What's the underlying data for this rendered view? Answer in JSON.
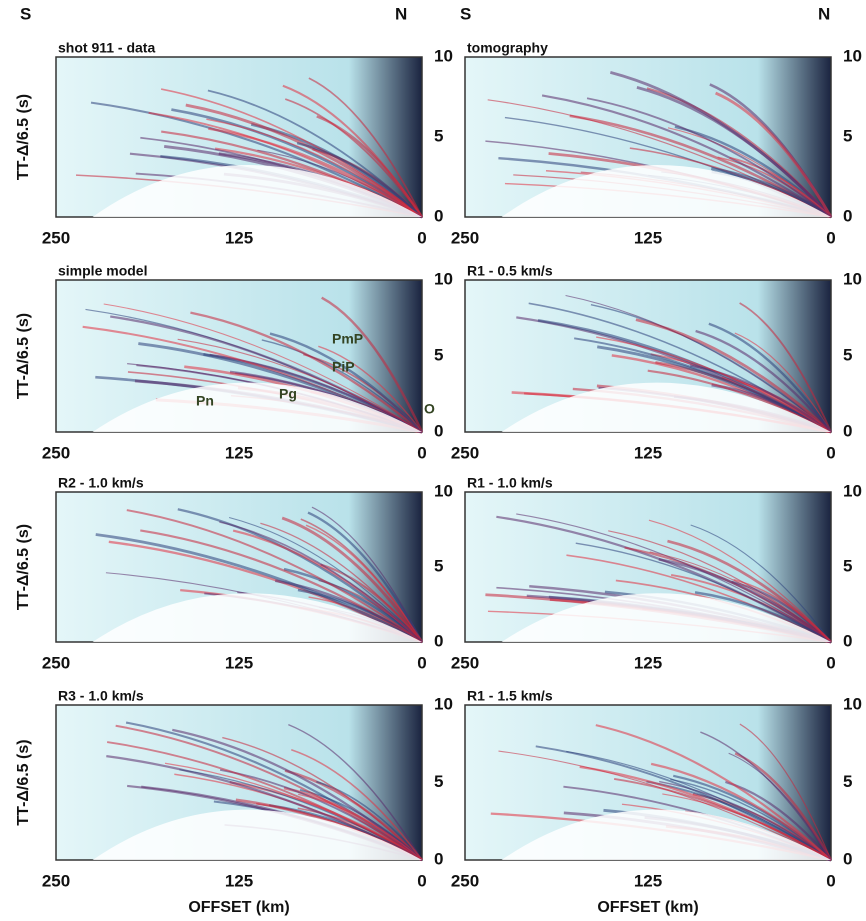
{
  "header": {
    "left": [
      "S",
      "N"
    ],
    "right": [
      "S",
      "N"
    ]
  },
  "y_label": "TT-Δ/6.5 (s)",
  "x_label": "OFFSET (km)",
  "panels": [
    {
      "title": "shot 911 - data",
      "xticks": [
        250,
        125,
        0
      ],
      "yticks": [
        0,
        5,
        10
      ]
    },
    {
      "title": "tomography",
      "xticks": [
        250,
        125,
        0
      ],
      "yticks": [
        0,
        5,
        10
      ]
    },
    {
      "title": "simple  model",
      "xticks": [
        250,
        125,
        0
      ],
      "yticks": [
        0,
        5,
        10
      ]
    },
    {
      "title": "R1 - 0.5 km/s",
      "xticks": [
        250,
        125,
        0
      ],
      "yticks": [
        0,
        5,
        10
      ]
    },
    {
      "title": "R2 - 1.0 km/s",
      "xticks": [
        250,
        125,
        0
      ],
      "yticks": [
        0,
        5,
        10
      ]
    },
    {
      "title": "R1 - 1.0 km/s",
      "xticks": [
        250,
        125,
        0
      ],
      "yticks": [
        0,
        5,
        10
      ]
    },
    {
      "title": "R3 - 1.0 km/s",
      "xticks": [
        250,
        125,
        0
      ],
      "yticks": [
        0,
        5,
        10
      ]
    },
    {
      "title": "R1 - 1.5 km/s",
      "xticks": [
        250,
        125,
        0
      ],
      "yticks": [
        0,
        5,
        10
      ]
    }
  ],
  "annotations": [
    "PmP",
    "PiP",
    "Pn",
    "Pg",
    "O"
  ]
}
